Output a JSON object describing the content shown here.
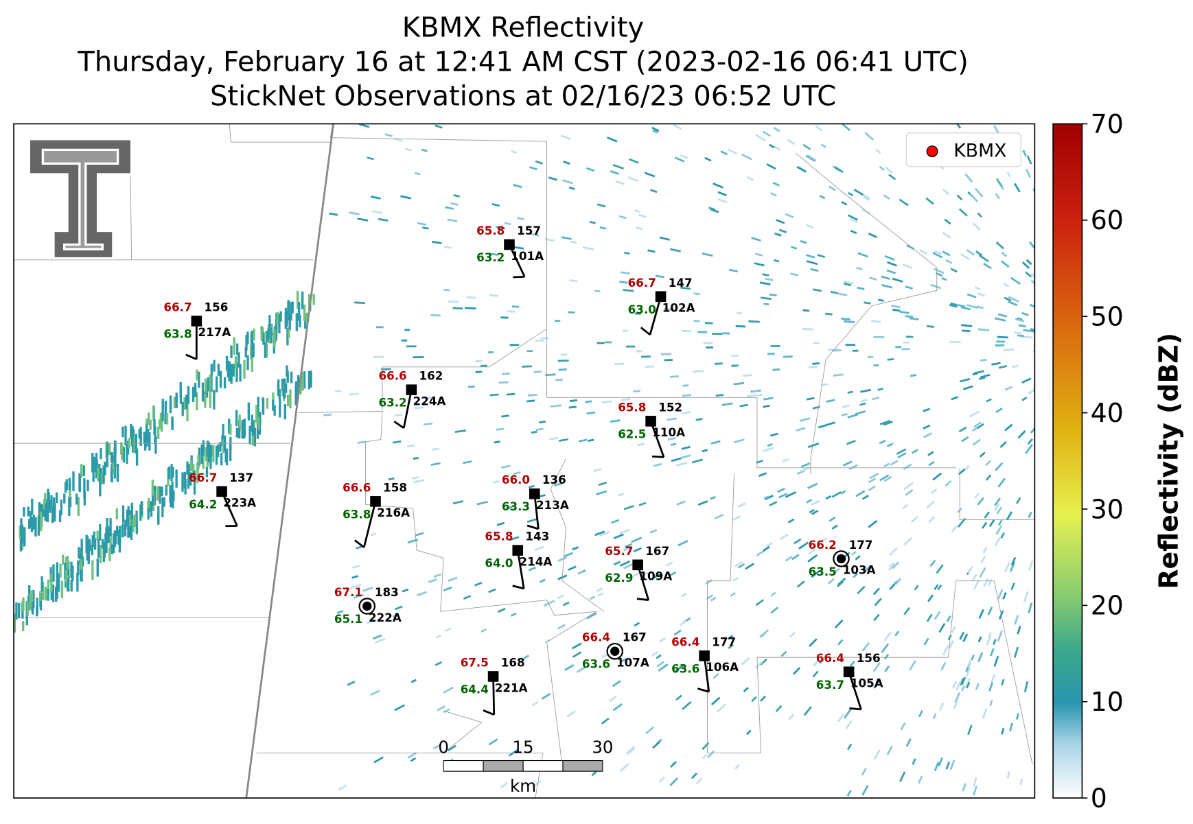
{
  "title": [
    "KBMX Reflectivity",
    "Thursday, February 16 at 12:41 AM CST (2023-02-16 06:41 UTC)",
    "StickNet Observations at 02/16/23 06:52 UTC"
  ],
  "legend": {
    "label": "KBMX",
    "color": "#ff0000"
  },
  "colorbar": {
    "label": "Reflectivity (dBZ)",
    "lim": [
      0,
      70
    ],
    "ticks": [
      0,
      10,
      20,
      30,
      40,
      50,
      60,
      70
    ]
  },
  "scale_bar": {
    "ticks": [
      "0",
      "15",
      "30"
    ],
    "unit": "km"
  },
  "stations": [
    {
      "id": "101A",
      "temperature": "65.8",
      "dewpoint": "63.2",
      "pressure": "157"
    },
    {
      "id": "102A",
      "temperature": "66.7",
      "dewpoint": "63.0",
      "pressure": "147"
    },
    {
      "id": "217A",
      "temperature": "66.7",
      "dewpoint": "63.8",
      "pressure": "156"
    },
    {
      "id": "224A",
      "temperature": "66.6",
      "dewpoint": "63.2",
      "pressure": "162"
    },
    {
      "id": "110A",
      "temperature": "65.8",
      "dewpoint": "62.5",
      "pressure": "152"
    },
    {
      "id": "223A",
      "temperature": "66.7",
      "dewpoint": "64.2",
      "pressure": "137"
    },
    {
      "id": "216A",
      "temperature": "66.6",
      "dewpoint": "63.8",
      "pressure": "158"
    },
    {
      "id": "213A",
      "temperature": "66.0",
      "dewpoint": "63.3",
      "pressure": "136"
    },
    {
      "id": "214A",
      "temperature": "65.8",
      "dewpoint": "64.0",
      "pressure": "143"
    },
    {
      "id": "109A",
      "temperature": "65.7",
      "dewpoint": "62.9",
      "pressure": "167"
    },
    {
      "id": "103A",
      "temperature": "66.2",
      "dewpoint": "63.5",
      "pressure": "177"
    },
    {
      "id": "222A",
      "temperature": "67.1",
      "dewpoint": "65.1",
      "pressure": "183"
    },
    {
      "id": "107A",
      "temperature": "66.4",
      "dewpoint": "63.6",
      "pressure": "167"
    },
    {
      "id": "106A",
      "temperature": "66.4",
      "dewpoint": "63.6",
      "pressure": "177"
    },
    {
      "id": "105A",
      "temperature": "66.4",
      "dewpoint": "63.7",
      "pressure": "156"
    },
    {
      "id": "221A",
      "temperature": "67.5",
      "dewpoint": "64.4",
      "pressure": "168"
    }
  ]
}
